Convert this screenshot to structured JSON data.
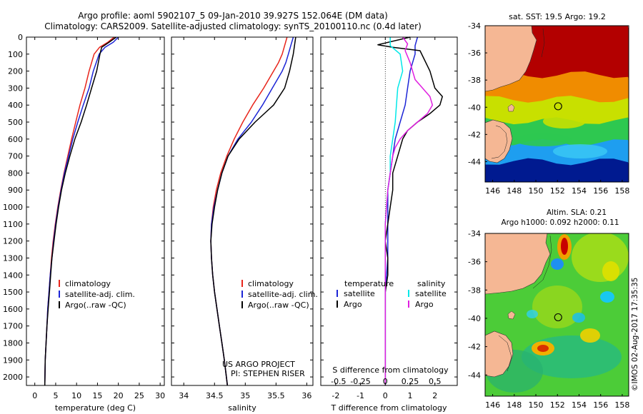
{
  "header": {
    "line1": "Argo profile: aoml 5902107_5 09-Jan-2010 39.927S 152.064E (DM data)",
    "line2": "Climatology: CARS2009. Satellite-adjusted climatology: synTS_20100110.nc (0.4d later)"
  },
  "colors": {
    "climatology": "#e8251b",
    "satellite": "#1c25d6",
    "argo": "#000000",
    "sal_satellite": "#00e8e8",
    "sal_argo": "#e01fe0"
  },
  "chart_data": [
    {
      "type": "line",
      "id": "temperature",
      "xlabel": "temperature (deg C)",
      "xlim": [
        -2,
        31
      ],
      "xticks": [
        0,
        5,
        10,
        15,
        20,
        25,
        30
      ],
      "xtick_labels": [
        "0",
        "5",
        "10",
        "15",
        "20",
        "25",
        "30"
      ],
      "ylim": [
        0,
        2050
      ],
      "yticks": [
        0,
        100,
        200,
        300,
        400,
        500,
        600,
        700,
        800,
        900,
        1000,
        1100,
        1200,
        1300,
        1400,
        1500,
        1600,
        1700,
        1800,
        1900,
        2000
      ],
      "ytick_labels": [
        "0",
        "100",
        "200",
        "300",
        "400",
        "500",
        "600",
        "700",
        "800",
        "900",
        "1000",
        "1100",
        "1200",
        "1300",
        "1400",
        "1500",
        "1600",
        "1700",
        "1800",
        "1900",
        "2000"
      ],
      "legend": [
        "climatology",
        "satellite-adj. clim.",
        "Argo(..raw -QC)"
      ],
      "series": [
        {
          "name": "climatology",
          "color": "#e8251b",
          "depth": [
            0,
            30,
            60,
            100,
            200,
            300,
            400,
            500,
            600,
            700,
            800,
            900,
            1000,
            1100,
            1200,
            1300,
            1400,
            1500,
            1600,
            1700,
            1800,
            1900,
            2050
          ],
          "values": [
            19.0,
            17.5,
            15.5,
            14.2,
            13.0,
            12.0,
            10.8,
            9.8,
            8.8,
            7.9,
            7.0,
            6.2,
            5.5,
            4.9,
            4.4,
            4.0,
            3.7,
            3.4,
            3.1,
            2.9,
            2.7,
            2.5,
            2.4
          ]
        },
        {
          "name": "satellite-adj. clim.",
          "color": "#1c25d6",
          "depth": [
            0,
            30,
            60,
            100,
            200,
            300,
            400,
            500,
            600,
            700,
            800,
            900,
            1000,
            1100,
            1200,
            1300,
            1400,
            1500,
            1600,
            1700,
            1800,
            1900,
            2050
          ],
          "values": [
            20.0,
            18.8,
            16.8,
            15.4,
            14.0,
            13.0,
            11.6,
            10.3,
            9.1,
            8.1,
            7.1,
            6.3,
            5.6,
            5.0,
            4.5,
            4.1,
            3.7,
            3.4,
            3.1,
            2.9,
            2.7,
            2.5,
            2.4
          ]
        },
        {
          "name": "Argo(..raw -QC)",
          "color": "#000000",
          "depth": [
            0,
            30,
            60,
            100,
            200,
            300,
            400,
            500,
            600,
            700,
            800,
            900,
            1000,
            1100,
            1200,
            1300,
            1400,
            1500,
            1600,
            1700,
            1800,
            1900,
            2050
          ],
          "values": [
            19.5,
            17.8,
            16.0,
            15.6,
            14.8,
            13.6,
            12.4,
            11.1,
            9.6,
            8.4,
            7.3,
            6.4,
            5.7,
            5.1,
            4.6,
            4.1,
            3.8,
            3.5,
            3.2,
            2.9,
            2.7,
            2.5,
            2.4
          ]
        }
      ]
    },
    {
      "type": "line",
      "id": "salinity",
      "xlabel": "salinity",
      "xlim": [
        33.8,
        36.1
      ],
      "xticks": [
        34,
        34.5,
        35,
        35.5,
        36
      ],
      "xtick_labels": [
        "34",
        "34.5",
        "35",
        "35.5",
        "36"
      ],
      "ylim": [
        0,
        2050
      ],
      "legend": [
        "climatology",
        "satellite-adj. clim.",
        "Argo(..raw -QC)"
      ],
      "annotation": [
        "US ARGO PROJECT",
        "PI: STEPHEN RISER"
      ],
      "series": [
        {
          "name": "climatology",
          "color": "#e8251b",
          "depth": [
            0,
            50,
            100,
            150,
            200,
            300,
            400,
            500,
            600,
            700,
            800,
            900,
            1000,
            1100,
            1200,
            1300,
            1400,
            1500,
            1600,
            1700,
            1800,
            1900,
            2050
          ],
          "values": [
            35.68,
            35.64,
            35.6,
            35.54,
            35.46,
            35.3,
            35.12,
            34.96,
            34.82,
            34.7,
            34.6,
            34.53,
            34.48,
            34.45,
            34.44,
            34.45,
            34.47,
            34.5,
            34.54,
            34.58,
            34.62,
            34.66,
            34.71
          ]
        },
        {
          "name": "satellite-adj. clim.",
          "color": "#1c25d6",
          "depth": [
            0,
            50,
            100,
            150,
            200,
            300,
            400,
            500,
            600,
            700,
            800,
            900,
            1000,
            1100,
            1200,
            1300,
            1400,
            1500,
            1600,
            1700,
            1800,
            1900,
            2050
          ],
          "values": [
            35.78,
            35.74,
            35.7,
            35.66,
            35.6,
            35.44,
            35.28,
            35.1,
            34.88,
            34.72,
            34.62,
            34.55,
            34.49,
            34.45,
            34.44,
            34.45,
            34.47,
            34.5,
            34.54,
            34.58,
            34.62,
            34.66,
            34.71
          ]
        },
        {
          "name": "Argo(..raw -QC)",
          "color": "#000000",
          "depth": [
            0,
            50,
            100,
            150,
            200,
            300,
            400,
            500,
            600,
            700,
            800,
            900,
            1000,
            1100,
            1200,
            1300,
            1400,
            1500,
            1600,
            1700,
            1800,
            1900,
            2050
          ],
          "values": [
            35.82,
            35.8,
            35.78,
            35.75,
            35.72,
            35.64,
            35.46,
            35.16,
            34.9,
            34.72,
            34.62,
            34.55,
            34.5,
            34.46,
            34.44,
            34.45,
            34.47,
            34.5,
            34.54,
            34.58,
            34.62,
            34.66,
            34.71
          ]
        }
      ]
    },
    {
      "type": "line",
      "id": "difference",
      "xlabel": "T difference from climatology",
      "xlabel_top": "S difference from climatology",
      "xlim": [
        -2.6,
        2.9
      ],
      "xticks": [
        -2,
        -1,
        0,
        1,
        2
      ],
      "xtick_labels": [
        "-2",
        "-1",
        "0",
        "1",
        "2"
      ],
      "sticks_pos": [
        -2,
        -1,
        0,
        1,
        2
      ],
      "sticks_labels": [
        "-0.5",
        "-0.25",
        "0",
        "0.25",
        "0.5"
      ],
      "ylim": [
        0,
        2050
      ],
      "legend_titles": [
        "temperature",
        "salinity"
      ],
      "legend": [
        "satellite",
        "Argo",
        "satellite",
        "Argo"
      ],
      "series": [
        {
          "name": "temperature satellite",
          "color": "#1c25d6",
          "depth": [
            0,
            50,
            100,
            200,
            300,
            400,
            500,
            600,
            700,
            800,
            900,
            1000,
            1100,
            1200,
            1300,
            1400,
            1500,
            1600,
            1700,
            1800,
            1900,
            2050
          ],
          "values": [
            1.3,
            1.2,
            1.2,
            1.0,
            0.9,
            0.8,
            0.6,
            0.4,
            0.3,
            0.2,
            0.1,
            0.1,
            0.1,
            0.1,
            0.1,
            0.05,
            0.0,
            0.0,
            0.0,
            0.0,
            0.0,
            0.0
          ]
        },
        {
          "name": "temperature Argo",
          "color": "#000000",
          "depth": [
            0,
            45,
            60,
            80,
            200,
            300,
            350,
            400,
            450,
            500,
            550,
            600,
            700,
            800,
            900,
            1000,
            1100,
            1200,
            1300,
            1400,
            1500,
            1600,
            1700,
            1800,
            1900,
            2050
          ],
          "values": [
            1.0,
            -0.3,
            0.3,
            1.4,
            1.8,
            2.0,
            2.3,
            2.2,
            1.8,
            1.3,
            0.9,
            0.7,
            0.5,
            0.3,
            0.3,
            0.2,
            0.1,
            0.0,
            0.1,
            0.1,
            0.0,
            0.0,
            0.0,
            0.0,
            0.0,
            0.0
          ]
        },
        {
          "name": "salinity satellite",
          "color": "#00e8e8",
          "depth": [
            0,
            50,
            100,
            200,
            300,
            400,
            500,
            600,
            700,
            800,
            900,
            1000,
            1100,
            1200,
            1300,
            1400,
            1500,
            1600,
            1700,
            1800,
            1900,
            2050
          ],
          "values": [
            0.2,
            0.2,
            0.6,
            0.7,
            0.5,
            0.45,
            0.4,
            0.3,
            0.2,
            0.2,
            0.1,
            0.05,
            0.0,
            0.0,
            0.0,
            0.0,
            0.0,
            0.0,
            0.0,
            0.0,
            0.0,
            0.0
          ]
        },
        {
          "name": "salinity Argo",
          "color": "#e01fe0",
          "depth": [
            0,
            40,
            80,
            150,
            250,
            300,
            350,
            400,
            450,
            500,
            550,
            600,
            650,
            700,
            800,
            900,
            1000,
            1100,
            1200,
            1300,
            1400,
            1500,
            1600,
            1700,
            1800,
            1900,
            2050
          ],
          "values": [
            0.7,
            0.9,
            0.8,
            1.0,
            1.2,
            1.5,
            1.8,
            1.9,
            1.7,
            1.3,
            0.9,
            0.6,
            0.4,
            0.3,
            0.2,
            0.1,
            0.05,
            0.0,
            0.0,
            0.0,
            0.0,
            0.0,
            0.0,
            0.0,
            0.0,
            0.0,
            0.0
          ]
        }
      ]
    },
    {
      "type": "heatmap",
      "id": "sst-map",
      "title": "sat. SST: 19.5 Argo: 19.2",
      "xlim": [
        145.3,
        158.6
      ],
      "ylim": [
        -45.5,
        -34
      ],
      "xticks": [
        146,
        148,
        150,
        152,
        154,
        156,
        158
      ],
      "xtick_labels": [
        "146",
        "148",
        "150",
        "152",
        "154",
        "156",
        "158"
      ],
      "yticks": [
        -34,
        -36,
        -38,
        -40,
        -42,
        -44
      ],
      "ytick_labels": [
        "-34",
        "-36",
        "-38",
        "-40",
        "-42",
        "-44"
      ],
      "profile_location": [
        152.064,
        -39.927
      ],
      "color_bands": [
        {
          "lat": [
            -34,
            -37.6
          ],
          "color": "#b30000"
        },
        {
          "lat": [
            -37.6,
            -39.4
          ],
          "color": "#f08c00"
        },
        {
          "lat": [
            -39.4,
            -41.0
          ],
          "color": "#c8e000"
        },
        {
          "lat": [
            -41.0,
            -42.6
          ],
          "color": "#2ec850"
        },
        {
          "lat": [
            -42.6,
            -44.0
          ],
          "color": "#1e9ef0"
        },
        {
          "lat": [
            -44.0,
            -45.5
          ],
          "color": "#001a90"
        }
      ]
    },
    {
      "type": "heatmap",
      "id": "sla-map",
      "title": "Altim. SLA: 0.21",
      "subtitle": "Argo h1000: 0.092 h2000: 0.11",
      "xlim": [
        145.3,
        158.6
      ],
      "ylim": [
        -45.5,
        -34
      ],
      "xticks": [
        146,
        148,
        150,
        152,
        154,
        156,
        158
      ],
      "xtick_labels": [
        "146",
        "148",
        "150",
        "152",
        "154",
        "156",
        "158"
      ],
      "yticks": [
        -34,
        -36,
        -38,
        -40,
        -42,
        -44
      ],
      "ytick_labels": [
        "-34",
        "-36",
        "-38",
        "-40",
        "-42",
        "-44"
      ],
      "profile_location": [
        152.064,
        -39.927
      ],
      "credit": "©IMOS 02-Aug-2017 17:35:35"
    }
  ]
}
